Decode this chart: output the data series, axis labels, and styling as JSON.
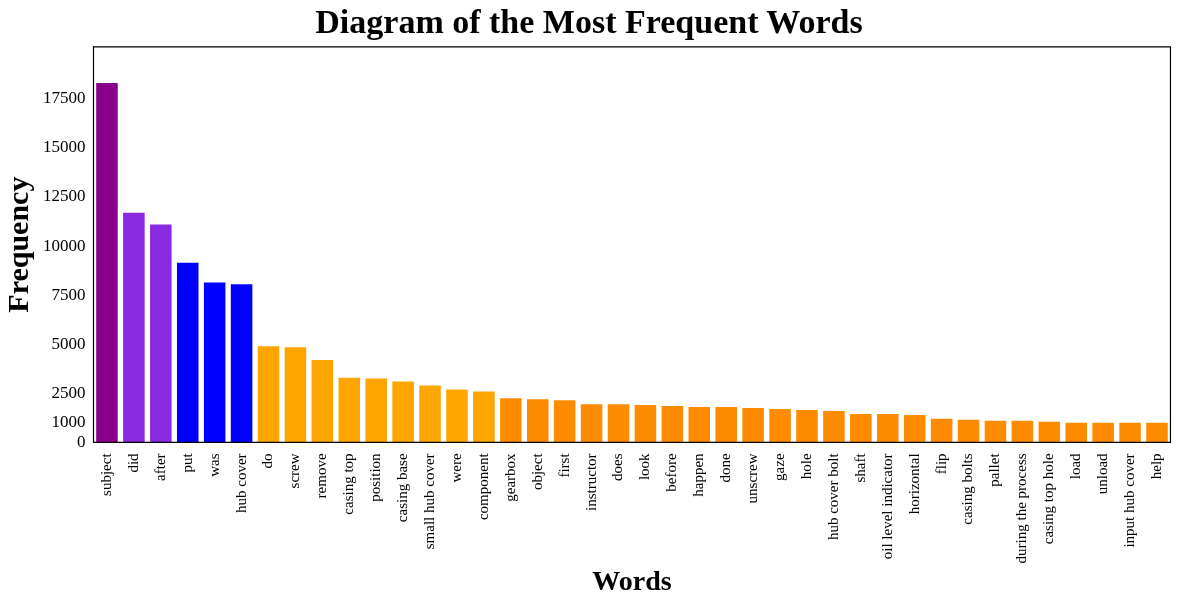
{
  "chart_data": {
    "type": "bar",
    "title": "Diagram of the Most Frequent Words",
    "xlabel": "Words",
    "ylabel": "Frequency",
    "categories": [
      "subject",
      "did",
      "after",
      "put",
      "was",
      "hub cover",
      "do",
      "screw",
      "remove",
      "casing top",
      "position",
      "casing base",
      "small hub cover",
      "were",
      "component",
      "gearbox",
      "object",
      "first",
      "instructor",
      "does",
      "look",
      "before",
      "happen",
      "done",
      "unscrew",
      "gaze",
      "hole",
      "hub cover bolt",
      "shaft",
      "oil level indicator",
      "horizontal",
      "flip",
      "casing bolts",
      "pallet",
      "during the process",
      "casing top hole",
      "load",
      "unload",
      "input hub cover",
      "help"
    ],
    "values": [
      18300,
      11700,
      11100,
      9150,
      8150,
      8050,
      4900,
      4850,
      4200,
      3300,
      3250,
      3100,
      2900,
      2700,
      2600,
      2250,
      2200,
      2150,
      1950,
      1950,
      1900,
      1850,
      1800,
      1800,
      1750,
      1700,
      1650,
      1600,
      1450,
      1450,
      1400,
      1200,
      1150,
      1100,
      1100,
      1050,
      1000,
      1000,
      1000,
      1000
    ],
    "colors": [
      "#8b008b",
      "#8a2be2",
      "#8a2be2",
      "#0000ff",
      "#0000ff",
      "#0000ff",
      "#ffa500",
      "#ffa500",
      "#ffa500",
      "#ffa500",
      "#ffa500",
      "#ffa500",
      "#ffa500",
      "#ffa500",
      "#ffa500",
      "#ff8c00",
      "#ff8c00",
      "#ff8c00",
      "#ff8c00",
      "#ff8c00",
      "#ff8c00",
      "#ff8c00",
      "#ff8c00",
      "#ff8c00",
      "#ff8c00",
      "#ff8c00",
      "#ff8c00",
      "#ff8c00",
      "#ff8c00",
      "#ff8c00",
      "#ff8c00",
      "#ff8c00",
      "#ff8c00",
      "#ff8c00",
      "#ff8c00",
      "#ff8c00",
      "#ff8c00",
      "#ff8c00",
      "#ff8c00",
      "#ff8c00"
    ],
    "ylim": [
      0,
      20150
    ],
    "yticks": [
      0,
      1000,
      2500,
      5000,
      7500,
      10000,
      12500,
      15000,
      17500
    ],
    "grid": false,
    "legend": false
  }
}
